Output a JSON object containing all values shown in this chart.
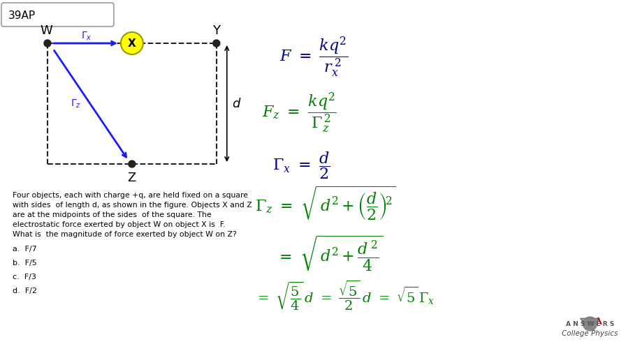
{
  "bg_color": "#ffffff",
  "title_box_text": "39AP",
  "problem_text": "Four objects, each with charge +q, are held fixed on a square\nwith sides  of length d, as shown in the figure. Objects X and Z\nare at the midpoints of the sides  of the square. The\nelectrostatic force exerted by object W on object X is  F.\nWhat is  the magnitude of force exerted by object W on Z?",
  "choices": [
    "a.  F/7",
    "b.  F/5",
    "c.  F/3",
    "d.  F/2"
  ],
  "diagram_color": "#222222",
  "arrow_color": "#1a1aff",
  "green_color": "#008000",
  "blue_color": "#00008B",
  "highlight_color": "#ffff00",
  "logo_text1": "College Physics",
  "logo_text2": "A N S W E R S"
}
